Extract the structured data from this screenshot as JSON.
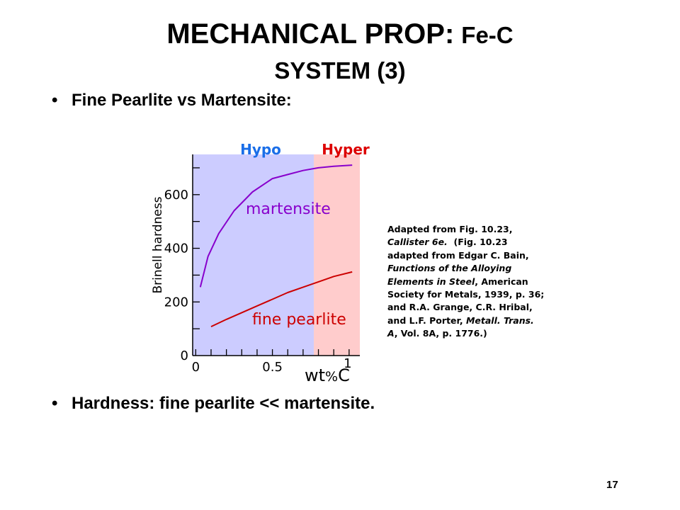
{
  "title": {
    "main": "MECHANICAL PROP:",
    "suffix": "Fe-C",
    "line2": "SYSTEM (3)"
  },
  "bullets": [
    "Fine Pearlite vs Martensite:",
    "Hardness:  fine pearlite << martensite."
  ],
  "bullet_symbol": "•",
  "caption": {
    "line1": "Adapted from Fig. 10.23,",
    "line2_italic": "Callister 6e.",
    "line2_rest": "  (Fig. 10.23",
    "line3": "adapted from Edgar C. Bain,",
    "line4_italic": "Functions of the Alloying",
    "line5_italic": "Elements in Steel",
    "line5_rest": ", American",
    "line6": "Society for Metals, 1939, p. 36;",
    "line7": "and R.A. Grange, C.R. Hribal,",
    "line8_pre": "and L.F. Porter, ",
    "line8_italic": "Metall. Trans.",
    "line9_italic": "A",
    "line9_rest": ", Vol. 8A, p. 1776.)"
  },
  "page_number": "17",
  "colors": {
    "hypo_fill": "#ccccff",
    "hyper_fill": "#ffcccc",
    "martensite": "#8800cc",
    "fine_pearlite": "#cc0000",
    "hypo_label": "#1a6ee8",
    "hyper_label": "#dd0000"
  },
  "chart_data": {
    "type": "line",
    "xlabel": "wt%C",
    "ylabel": "Brinell hardness",
    "xlim": [
      -0.02,
      1.07
    ],
    "ylim": [
      0,
      750
    ],
    "x_ticks": [
      {
        "value": 0,
        "label": "0"
      },
      {
        "value": 0.5,
        "label": "0.5"
      },
      {
        "value": 1,
        "label": "1"
      }
    ],
    "x_minor_ticks": [
      0.1,
      0.2,
      0.3,
      0.4,
      0.6,
      0.7,
      0.8,
      0.9
    ],
    "y_ticks": [
      {
        "value": 0,
        "label": "0"
      },
      {
        "value": 200,
        "label": "200"
      },
      {
        "value": 400,
        "label": "400"
      },
      {
        "value": 600,
        "label": "600"
      }
    ],
    "y_minor_ticks": [
      100,
      300,
      500,
      700
    ],
    "regions": [
      {
        "label": "Hypo",
        "x_from": -0.02,
        "x_to": 0.77
      },
      {
        "label": "Hyper",
        "x_from": 0.77,
        "x_to": 1.07
      }
    ],
    "series": [
      {
        "name": "martensite",
        "x": [
          0.03,
          0.08,
          0.15,
          0.25,
          0.37,
          0.5,
          0.6,
          0.7,
          0.8,
          0.9,
          1.02
        ],
        "y": [
          255,
          370,
          455,
          540,
          610,
          660,
          675,
          690,
          700,
          706,
          710
        ]
      },
      {
        "name": "fine pearlite",
        "x": [
          0.1,
          0.2,
          0.3,
          0.4,
          0.5,
          0.6,
          0.7,
          0.8,
          0.9,
          1.02
        ],
        "y": [
          108,
          135,
          160,
          185,
          210,
          235,
          255,
          275,
          295,
          312
        ]
      }
    ]
  }
}
